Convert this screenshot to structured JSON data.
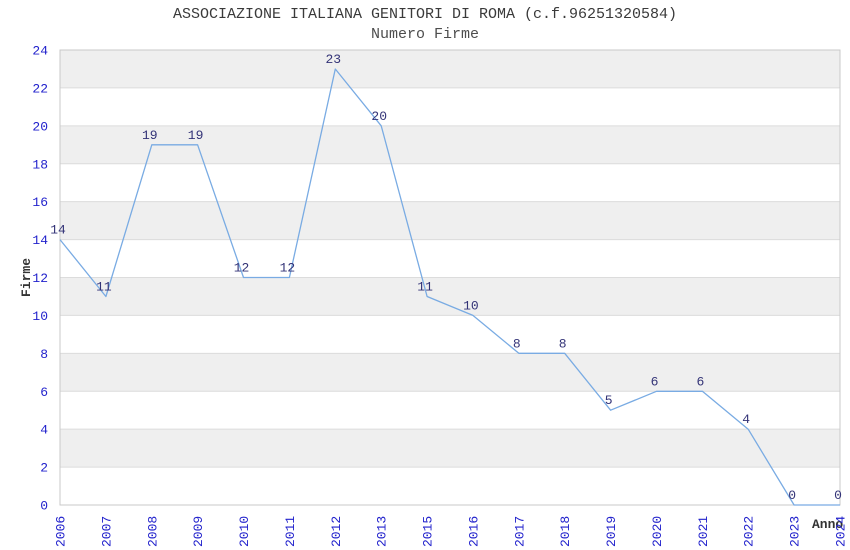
{
  "chart_data": {
    "type": "line",
    "title": "ASSOCIAZIONE ITALIANA GENITORI DI ROMA (c.f.96251320584)",
    "subtitle": "Numero Firme",
    "xlabel": "Anno",
    "ylabel": "Firme",
    "categories": [
      "2006",
      "2007",
      "2008",
      "2009",
      "2010",
      "2011",
      "2012",
      "2013",
      "2015",
      "2016",
      "2017",
      "2018",
      "2019",
      "2020",
      "2021",
      "2022",
      "2023",
      "2024"
    ],
    "values": [
      14,
      11,
      19,
      19,
      12,
      12,
      23,
      20,
      11,
      10,
      8,
      8,
      5,
      6,
      6,
      4,
      0,
      0
    ],
    "point_labels_shown": true,
    "ylim": [
      0,
      24
    ],
    "ytick_step": 2,
    "legend": "none",
    "grid": "horizontal-bands-every-2-units",
    "colors": {
      "line": "#79ABE3",
      "point_label": "#333377",
      "tick_label": "#2222CC",
      "band": "#EFEFEF",
      "gridline": "#DCDCDC",
      "plot_border": "#C9C9C9",
      "title": "#3A3A3A",
      "subtitle": "#4D4D4D",
      "axis_title": "#333333",
      "plot_background": "#FFFFFF"
    }
  }
}
